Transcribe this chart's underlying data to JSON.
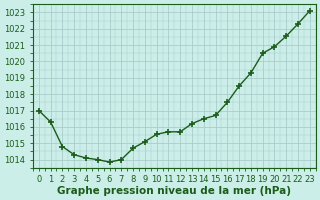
{
  "x": [
    0,
    1,
    2,
    3,
    4,
    5,
    6,
    7,
    8,
    9,
    10,
    11,
    12,
    13,
    14,
    15,
    16,
    17,
    18,
    19,
    20,
    21,
    22,
    23
  ],
  "y": [
    1017.0,
    1016.3,
    1014.8,
    1014.3,
    1014.1,
    1014.0,
    1013.85,
    1014.0,
    1014.7,
    1015.1,
    1015.55,
    1015.7,
    1015.7,
    1016.2,
    1016.5,
    1016.7,
    1017.5,
    1018.5,
    1019.3,
    1020.5,
    1020.9,
    1021.55,
    1022.3,
    1023.1
  ],
  "line_color": "#1a5c1a",
  "marker": "+",
  "marker_size": 4,
  "marker_lw": 1.2,
  "bg_color": "#cceee8",
  "grid_color": "#aacccc",
  "xlabel": "Graphe pression niveau de la mer (hPa)",
  "xlabel_fontsize": 7.5,
  "ylabel_ticks": [
    1014,
    1015,
    1016,
    1017,
    1018,
    1019,
    1020,
    1021,
    1022,
    1023
  ],
  "ylim": [
    1013.5,
    1023.5
  ],
  "xlim": [
    -0.5,
    23.5
  ],
  "tick_fontsize": 6,
  "line_width": 1.0,
  "fig_width": 3.2,
  "fig_height": 2.0,
  "dpi": 100
}
